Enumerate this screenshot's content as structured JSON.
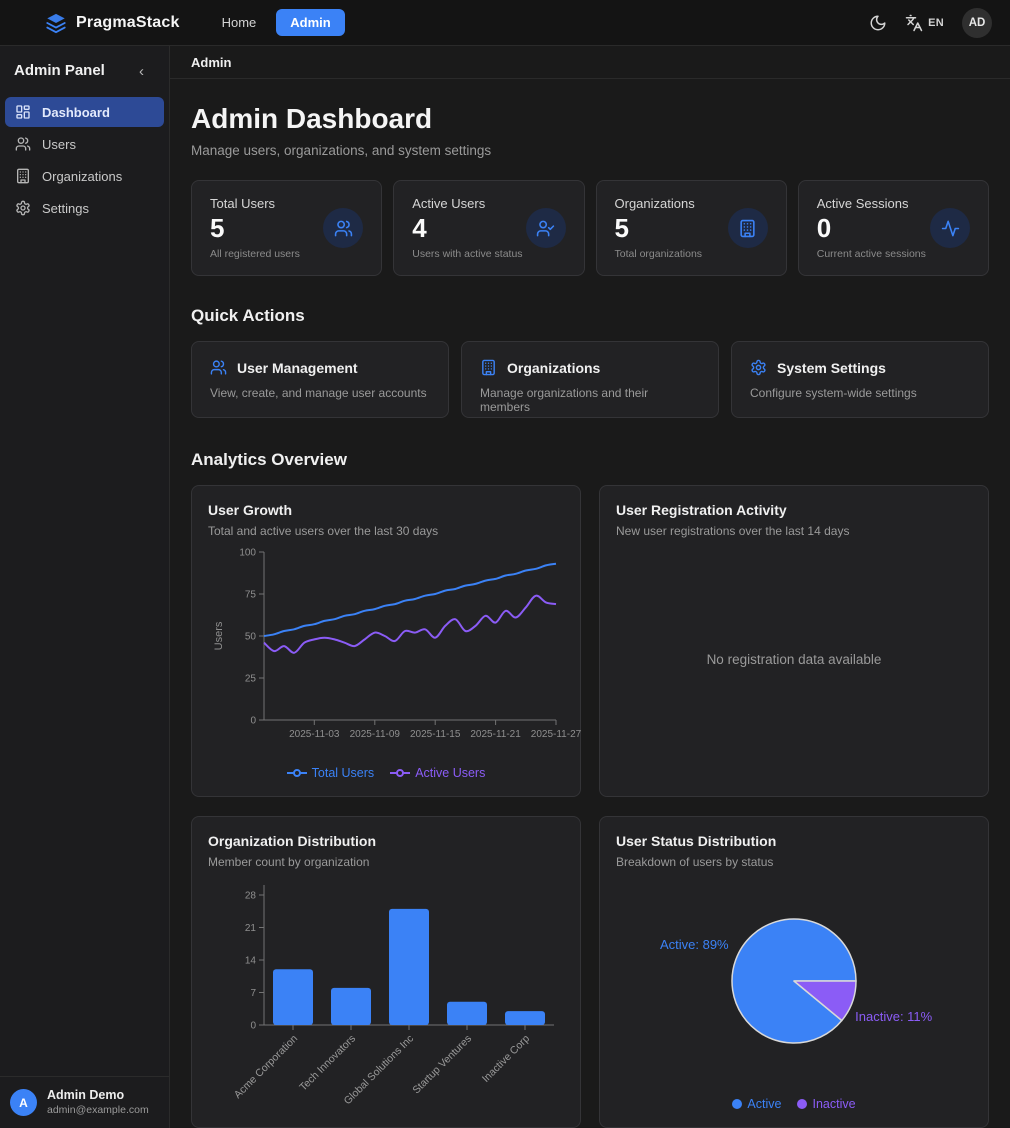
{
  "navbar": {
    "brand": "PragmaStack",
    "links": [
      {
        "label": "Home"
      },
      {
        "label": "Admin"
      }
    ],
    "language": "EN",
    "avatar_initials": "AD"
  },
  "sidebar": {
    "title": "Admin Panel",
    "collapse_glyph": "‹",
    "items": [
      {
        "label": "Dashboard"
      },
      {
        "label": "Users"
      },
      {
        "label": "Organizations"
      },
      {
        "label": "Settings"
      }
    ],
    "user": {
      "initial": "A",
      "name": "Admin Demo",
      "email": "admin@example.com"
    }
  },
  "breadcrumb": "Admin",
  "header": {
    "title": "Admin Dashboard",
    "subtitle": "Manage users, organizations, and system settings"
  },
  "stats": [
    {
      "label": "Total Users",
      "value": "5",
      "description": "All registered users"
    },
    {
      "label": "Active Users",
      "value": "4",
      "description": "Users with active status"
    },
    {
      "label": "Organizations",
      "value": "5",
      "description": "Total organizations"
    },
    {
      "label": "Active Sessions",
      "value": "0",
      "description": "Current active sessions"
    }
  ],
  "quick_actions": {
    "heading": "Quick Actions",
    "cards": [
      {
        "title": "User Management",
        "description": "View, create, and manage user accounts"
      },
      {
        "title": "Organizations",
        "description": "Manage organizations and their members"
      },
      {
        "title": "System Settings",
        "description": "Configure system-wide settings"
      }
    ]
  },
  "analytics_heading": "Analytics Overview",
  "colors": {
    "accent": "#3b82f6",
    "purple": "#8b5cf6",
    "axis": "#737373",
    "tick": "#8f8f8f"
  },
  "chart_data": [
    {
      "type": "line",
      "title": "User Growth",
      "subtitle": "Total and active users over the last 30 days",
      "ylabel": "Users",
      "ylim": [
        0,
        100
      ],
      "yticks": [
        0,
        25,
        50,
        75,
        100
      ],
      "grid": false,
      "legend_position": "bottom",
      "x": [
        "2025-10-29",
        "2025-10-30",
        "2025-10-31",
        "2025-11-01",
        "2025-11-02",
        "2025-11-03",
        "2025-11-04",
        "2025-11-05",
        "2025-11-06",
        "2025-11-07",
        "2025-11-08",
        "2025-11-09",
        "2025-11-10",
        "2025-11-11",
        "2025-11-12",
        "2025-11-13",
        "2025-11-14",
        "2025-11-15",
        "2025-11-16",
        "2025-11-17",
        "2025-11-18",
        "2025-11-19",
        "2025-11-20",
        "2025-11-21",
        "2025-11-22",
        "2025-11-23",
        "2025-11-24",
        "2025-11-25",
        "2025-11-26",
        "2025-11-27"
      ],
      "xtick_labels": [
        "2025-11-03",
        "2025-11-09",
        "2025-11-15",
        "2025-11-21",
        "2025-11-27"
      ],
      "series": [
        {
          "name": "Total Users",
          "color": "#3b82f6",
          "values": [
            50,
            51,
            53,
            54,
            56,
            57,
            59,
            60,
            62,
            63,
            65,
            66,
            68,
            69,
            71,
            72,
            74,
            75,
            77,
            78,
            80,
            81,
            83,
            84,
            86,
            87,
            89,
            90,
            92,
            93
          ]
        },
        {
          "name": "Active Users",
          "color": "#8b5cf6",
          "values": [
            46,
            41,
            44,
            40,
            46,
            48,
            49,
            48,
            46,
            44,
            48,
            52,
            50,
            47,
            53,
            52,
            54,
            49,
            56,
            60,
            53,
            56,
            62,
            58,
            65,
            61,
            67,
            74,
            70,
            69
          ]
        }
      ]
    },
    {
      "type": "empty",
      "title": "User Registration Activity",
      "subtitle": "New user registrations over the last 14 days",
      "message": "No registration data available"
    },
    {
      "type": "bar",
      "title": "Organization Distribution",
      "subtitle": "Member count by organization",
      "categories": [
        "Acme Corporation",
        "Tech Innovators",
        "Global Solutions Inc",
        "Startup Ventures",
        "Inactive Corp"
      ],
      "values": [
        12,
        8,
        25,
        5,
        3
      ],
      "bar_color": "#3b82f6",
      "ylim": [
        0,
        28
      ],
      "yticks": [
        0,
        7,
        14,
        21,
        28
      ],
      "grid": false
    },
    {
      "type": "pie",
      "title": "User Status Distribution",
      "subtitle": "Breakdown of users by status",
      "slices": [
        {
          "label": "Active",
          "pct": 89,
          "color": "#3b82f6"
        },
        {
          "label": "Inactive",
          "pct": 11,
          "color": "#8b5cf6"
        }
      ],
      "labels": [
        "Active: 89%",
        "Inactive: 11%"
      ],
      "legend": [
        "Active",
        "Inactive"
      ],
      "legend_position": "bottom"
    }
  ]
}
